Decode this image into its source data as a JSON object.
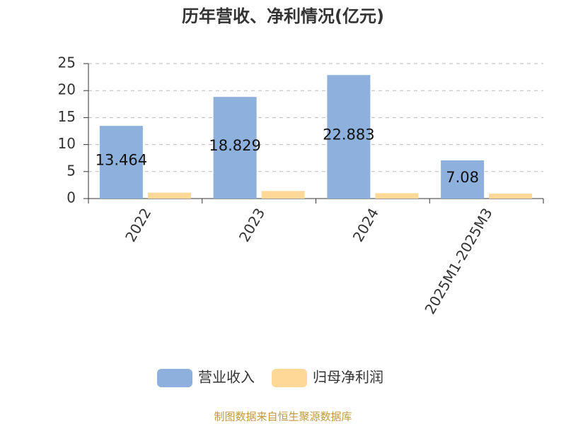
{
  "chart_data": {
    "type": "bar",
    "title": "历年营收、净利情况(亿元)",
    "categories": [
      "2022",
      "2023",
      "2024",
      "2025M1-2025M3"
    ],
    "series": [
      {
        "name": "营业收入",
        "color": "#8eb0dc",
        "values": [
          13.464,
          18.829,
          22.883,
          7.08
        ],
        "show_labels": true
      },
      {
        "name": "归母净利润",
        "color": "#fdd896",
        "values": [
          1.1,
          1.4,
          1.0,
          0.9
        ],
        "show_labels": false
      }
    ],
    "ylim": [
      0,
      25
    ],
    "yticks": [
      0,
      5,
      10,
      15,
      20,
      25
    ],
    "grid": true,
    "legend": "bottom",
    "source": "制图数据来自恒生聚源数据库"
  }
}
